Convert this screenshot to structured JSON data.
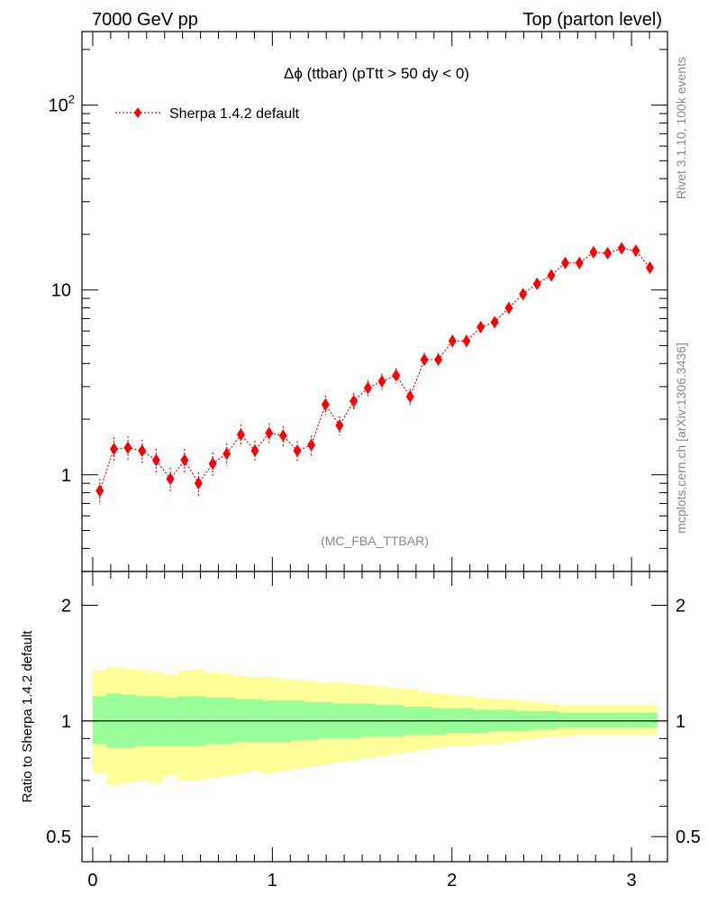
{
  "header": {
    "left": "7000 GeV pp",
    "right": "Top (parton level)"
  },
  "side_labels": {
    "rivet": "Rivet 3.1.10,  100k events",
    "mcplots": "mcplots.cern.ch [arXiv:1306.3436]"
  },
  "chart_data": [
    {
      "type": "scatter",
      "title": "Δϕ (ttbar) (pTtt > 50 dy < 0)",
      "annotation": "(MC_FBA_TTBAR)",
      "yscale": "log",
      "ylim": [
        0.3,
        250
      ],
      "xlim": [
        -0.06,
        3.2
      ],
      "yticks": [
        1,
        10,
        100
      ],
      "ytick_labels": [
        "1",
        "10",
        "10^2"
      ],
      "legend": "top-left",
      "series": [
        {
          "name": "Sherpa 1.4.2 default",
          "color": "#ff0000",
          "marker": "diamond",
          "line": "dotted",
          "x": [
            0.039,
            0.118,
            0.196,
            0.275,
            0.353,
            0.432,
            0.511,
            0.589,
            0.668,
            0.746,
            0.825,
            0.903,
            0.982,
            1.06,
            1.139,
            1.217,
            1.296,
            1.374,
            1.453,
            1.532,
            1.61,
            1.689,
            1.767,
            1.846,
            1.924,
            2.003,
            2.081,
            2.16,
            2.238,
            2.317,
            2.396,
            2.474,
            2.553,
            2.631,
            2.71,
            2.788,
            2.867,
            2.945,
            3.024,
            3.102
          ],
          "y": [
            0.82,
            1.38,
            1.4,
            1.35,
            1.2,
            0.95,
            1.2,
            0.9,
            1.15,
            1.3,
            1.65,
            1.35,
            1.68,
            1.63,
            1.35,
            1.45,
            2.4,
            1.85,
            2.5,
            2.95,
            3.2,
            3.45,
            2.65,
            4.2,
            4.2,
            5.3,
            5.3,
            6.3,
            6.7,
            8.0,
            9.5,
            10.8,
            12.0,
            14.0,
            14.0,
            16.0,
            15.8,
            16.8,
            16.3,
            13.2
          ],
          "yerr": [
            0.13,
            0.22,
            0.22,
            0.2,
            0.18,
            0.14,
            0.18,
            0.13,
            0.17,
            0.18,
            0.22,
            0.18,
            0.22,
            0.2,
            0.17,
            0.18,
            0.28,
            0.22,
            0.27,
            0.3,
            0.32,
            0.33,
            0.27,
            0.38,
            0.37,
            0.42,
            0.42,
            0.46,
            0.48,
            0.54,
            0.6,
            0.65,
            0.7,
            0.76,
            0.76,
            0.82,
            0.8,
            0.84,
            0.82,
            0.7
          ]
        }
      ]
    },
    {
      "type": "area",
      "ylabel": "Ratio to Sherpa 1.4.2 default",
      "yscale": "log",
      "ylim": [
        0.43,
        2.45
      ],
      "xlim": [
        -0.06,
        3.2
      ],
      "yticks": [
        0.5,
        1,
        2
      ],
      "ytick_labels": [
        "0.5",
        "1",
        "2"
      ],
      "xticks": [
        0,
        1,
        2,
        3
      ],
      "xtick_labels": [
        "0",
        "1",
        "2",
        "3"
      ],
      "reference_line": 1,
      "bands": [
        {
          "color": "#ffff99",
          "lower": [
            0.73,
            0.68,
            0.69,
            0.7,
            0.69,
            0.72,
            0.7,
            0.7,
            0.71,
            0.72,
            0.73,
            0.74,
            0.73,
            0.74,
            0.75,
            0.76,
            0.77,
            0.78,
            0.79,
            0.8,
            0.81,
            0.82,
            0.83,
            0.84,
            0.85,
            0.86,
            0.86,
            0.87,
            0.87,
            0.88,
            0.89,
            0.9,
            0.91,
            0.91,
            0.92,
            0.92,
            0.92,
            0.92,
            0.92,
            0.92
          ],
          "upper": [
            1.35,
            1.38,
            1.37,
            1.36,
            1.34,
            1.32,
            1.35,
            1.36,
            1.34,
            1.33,
            1.31,
            1.3,
            1.3,
            1.29,
            1.28,
            1.27,
            1.26,
            1.26,
            1.25,
            1.24,
            1.23,
            1.22,
            1.21,
            1.19,
            1.18,
            1.17,
            1.16,
            1.15,
            1.14,
            1.14,
            1.13,
            1.12,
            1.11,
            1.1,
            1.1,
            1.1,
            1.1,
            1.1,
            1.1,
            1.1
          ]
        },
        {
          "color": "#99ff99",
          "lower": [
            0.87,
            0.85,
            0.85,
            0.86,
            0.86,
            0.86,
            0.86,
            0.86,
            0.87,
            0.87,
            0.88,
            0.88,
            0.88,
            0.88,
            0.89,
            0.89,
            0.9,
            0.9,
            0.9,
            0.91,
            0.91,
            0.91,
            0.92,
            0.92,
            0.92,
            0.93,
            0.93,
            0.93,
            0.94,
            0.94,
            0.94,
            0.95,
            0.95,
            0.96,
            0.96,
            0.96,
            0.96,
            0.96,
            0.96,
            0.96
          ],
          "upper": [
            1.16,
            1.18,
            1.17,
            1.16,
            1.16,
            1.15,
            1.16,
            1.16,
            1.15,
            1.15,
            1.14,
            1.14,
            1.13,
            1.13,
            1.13,
            1.12,
            1.12,
            1.11,
            1.11,
            1.11,
            1.1,
            1.1,
            1.09,
            1.09,
            1.08,
            1.08,
            1.08,
            1.07,
            1.07,
            1.07,
            1.06,
            1.06,
            1.06,
            1.05,
            1.05,
            1.05,
            1.05,
            1.05,
            1.05,
            1.05
          ]
        }
      ]
    }
  ]
}
